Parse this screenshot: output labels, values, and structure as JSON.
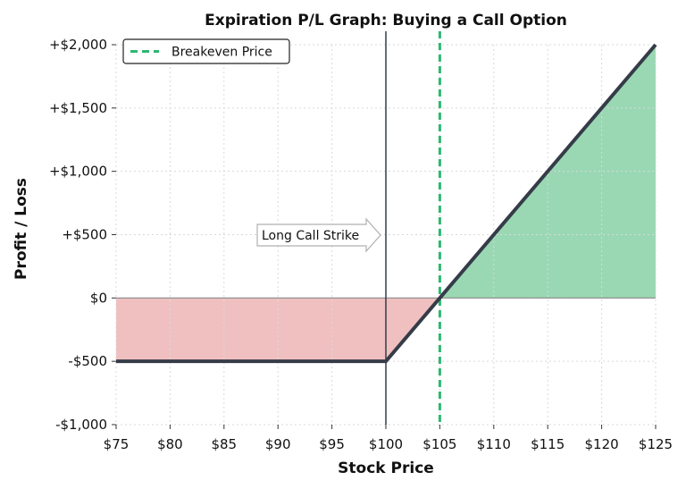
{
  "chart_data": {
    "type": "line",
    "title": "Expiration P/L Graph: Buying a Call Option",
    "xlabel": "Stock Price",
    "ylabel": "Profit / Loss",
    "xlim": [
      75,
      125
    ],
    "ylim": [
      -1000,
      2000
    ],
    "x_ticks": [
      75,
      80,
      85,
      90,
      95,
      100,
      105,
      110,
      115,
      120,
      125
    ],
    "x_tick_labels": [
      "$75",
      "$80",
      "$85",
      "$90",
      "$95",
      "$100",
      "$105",
      "$110",
      "$115",
      "$120",
      "$125"
    ],
    "y_ticks": [
      -1000,
      -500,
      0,
      500,
      1000,
      1500,
      2000
    ],
    "y_tick_labels": [
      "-$1,000",
      "-$500",
      "$0",
      "+$500",
      "+$1,000",
      "+$1,500",
      "+$2,000"
    ],
    "grid": true,
    "legend_position": "top-left",
    "series": [
      {
        "x": [
          75,
          100,
          105,
          125
        ],
        "y": [
          -500,
          -500,
          0,
          2000
        ],
        "color": "#353c48"
      }
    ],
    "loss_fill_color": "#f0c0c0",
    "profit_fill_color": "#99d8b3",
    "breakeven": {
      "x": 105,
      "label": "Breakeven Price",
      "color": "#2db870"
    },
    "strike": {
      "x": 100,
      "annotation": "Long Call Strike",
      "color": "#353c48"
    }
  }
}
